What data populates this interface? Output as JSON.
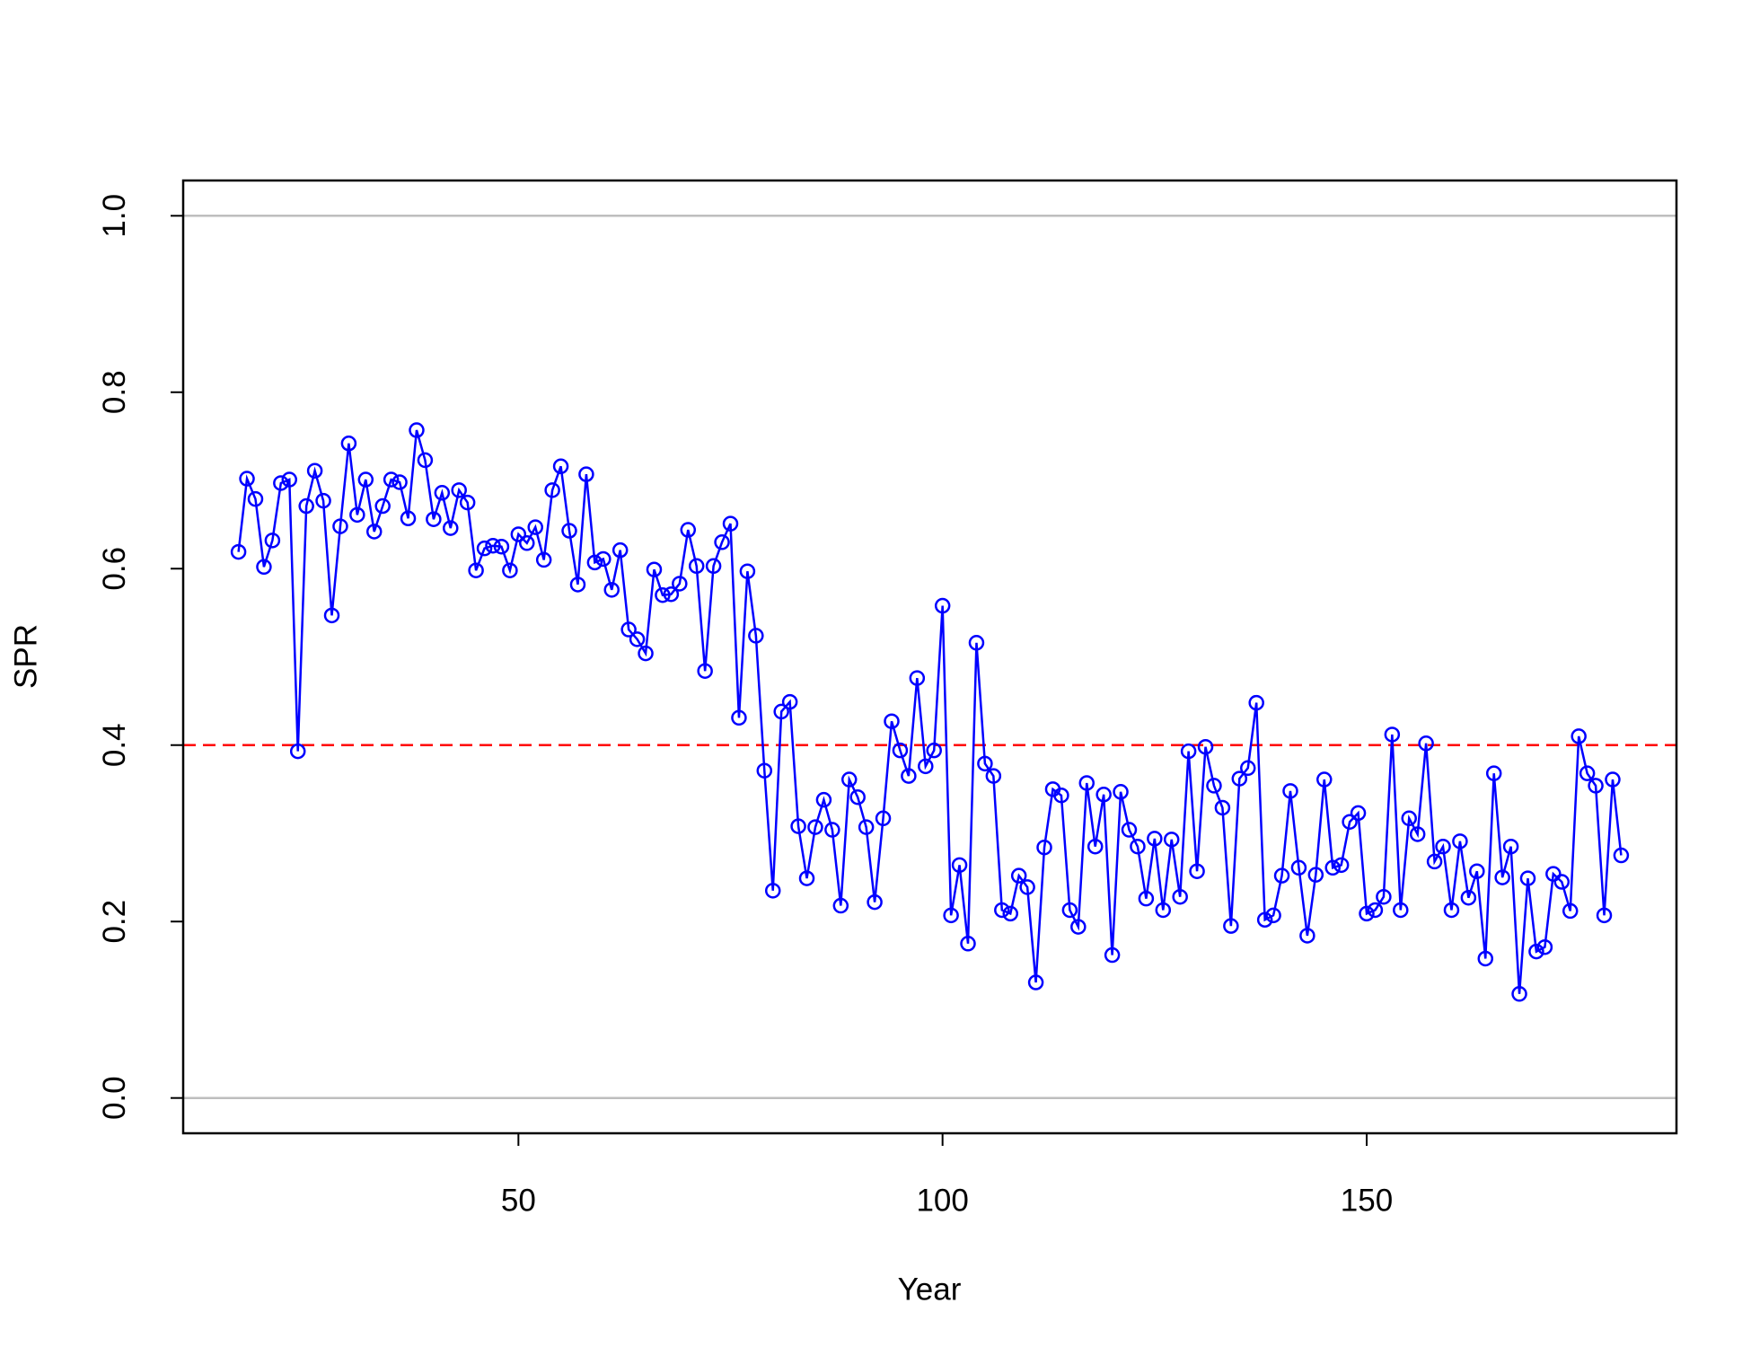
{
  "chart_data": {
    "type": "line",
    "xlabel": "Year",
    "ylabel": "SPR",
    "x": [
      17,
      18,
      19,
      20,
      21,
      22,
      23,
      24,
      25,
      26,
      27,
      28,
      29,
      30,
      31,
      32,
      33,
      34,
      35,
      36,
      37,
      38,
      39,
      40,
      41,
      42,
      43,
      44,
      45,
      46,
      47,
      48,
      49,
      50,
      51,
      52,
      53,
      54,
      55,
      56,
      57,
      58,
      59,
      60,
      61,
      62,
      63,
      64,
      65,
      66,
      67,
      68,
      69,
      70,
      71,
      72,
      73,
      74,
      75,
      76,
      77,
      78,
      79,
      80,
      81,
      82,
      83,
      84,
      85,
      86,
      87,
      88,
      89,
      90,
      91,
      92,
      93,
      94,
      95,
      96,
      97,
      98,
      99,
      100,
      101,
      102,
      103,
      104,
      105,
      106,
      107,
      108,
      109,
      110,
      111,
      112,
      113,
      114,
      115,
      116,
      117,
      118,
      119,
      120,
      121,
      122,
      123,
      124,
      125,
      126,
      127,
      128,
      129,
      130,
      131,
      132,
      133,
      134,
      135,
      136,
      137,
      138,
      139,
      140,
      141,
      142,
      143,
      144,
      145,
      146,
      147,
      148,
      149,
      150,
      151,
      152,
      153,
      154,
      155,
      156,
      157,
      158,
      159,
      160,
      161,
      162,
      163,
      164,
      165,
      166,
      167,
      168,
      169,
      170,
      171,
      172,
      173,
      174,
      175,
      176,
      177,
      178,
      179,
      180
    ],
    "series": [
      {
        "color": "#0000ff",
        "values": [
          0.619,
          0.702,
          0.679,
          0.602,
          0.632,
          0.697,
          0.701,
          0.393,
          0.671,
          0.711,
          0.677,
          0.547,
          0.648,
          0.742,
          0.661,
          0.701,
          0.642,
          0.671,
          0.701,
          0.698,
          0.657,
          0.757,
          0.723,
          0.656,
          0.686,
          0.646,
          0.689,
          0.675,
          0.598,
          0.623,
          0.626,
          0.625,
          0.598,
          0.639,
          0.629,
          0.647,
          0.61,
          0.689,
          0.716,
          0.643,
          0.582,
          0.707,
          0.607,
          0.611,
          0.576,
          0.621,
          0.531,
          0.52,
          0.504,
          0.599,
          0.57,
          0.571,
          0.583,
          0.644,
          0.603,
          0.484,
          0.603,
          0.63,
          0.651,
          0.431,
          0.597,
          0.524,
          0.371,
          0.235,
          0.438,
          0.449,
          0.308,
          0.249,
          0.307,
          0.338,
          0.304,
          0.218,
          0.361,
          0.341,
          0.307,
          0.222,
          0.317,
          0.427,
          0.394,
          0.365,
          0.476,
          0.376,
          0.394,
          0.558,
          0.207,
          0.264,
          0.175,
          0.516,
          0.379,
          0.365,
          0.213,
          0.209,
          0.252,
          0.239,
          0.131,
          0.284,
          0.35,
          0.343,
          0.213,
          0.194,
          0.357,
          0.285,
          0.344,
          0.162,
          0.347,
          0.304,
          0.285,
          0.226,
          0.294,
          0.213,
          0.293,
          0.228,
          0.393,
          0.257,
          0.398,
          0.354,
          0.329,
          0.195,
          0.362,
          0.374,
          0.448,
          0.202,
          0.207,
          0.252,
          0.348,
          0.261,
          0.184,
          0.253,
          0.361,
          0.261,
          0.264,
          0.313,
          0.323,
          0.209,
          0.213,
          0.228,
          0.412,
          0.213,
          0.317,
          0.299,
          0.402,
          0.268,
          0.285,
          0.213,
          0.291,
          0.227,
          0.257,
          0.158,
          0.368,
          0.25,
          0.285,
          0.118,
          0.249,
          0.166,
          0.171,
          0.254,
          0.245,
          0.212,
          0.41,
          0.368,
          0.354,
          0.207,
          0.361,
          0.275
        ]
      }
    ],
    "hlines": [
      {
        "value": 0,
        "color": "#bebebe",
        "dashed": false
      },
      {
        "value": 1,
        "color": "#bebebe",
        "dashed": false
      },
      {
        "value": 0.4,
        "color": "#ff0000",
        "dashed": true
      }
    ],
    "xlim": [
      10.48,
      186.52
    ],
    "ylim": [
      -0.04,
      1.04
    ],
    "xticks": [
      50,
      100,
      150
    ],
    "yticks": [
      {
        "value": 0,
        "label": "0.0"
      },
      0.2,
      0.4,
      0.6,
      0.8,
      {
        "value": 1,
        "label": "1.0"
      }
    ]
  }
}
